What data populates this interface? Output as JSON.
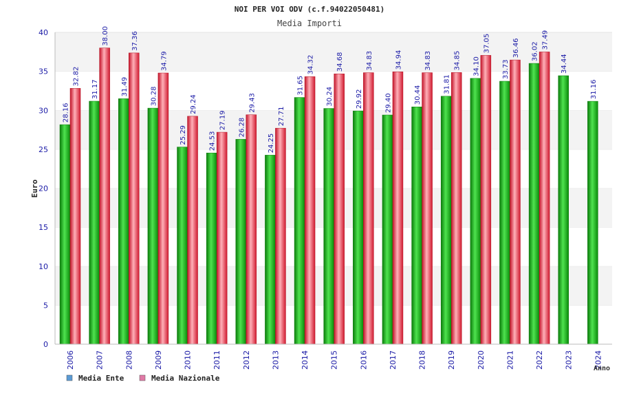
{
  "chart_data": {
    "type": "bar",
    "title": "NOI PER VOI ODV (c.f.94022050481)",
    "subtitle": "Media Importi",
    "ylabel": "Euro",
    "xlabel": "Anno",
    "ylim": [
      0,
      40
    ],
    "yticks": [
      0,
      5,
      10,
      15,
      20,
      25,
      30,
      35,
      40
    ],
    "grid": "horizontal bands",
    "legend_position": "bottom-left",
    "categories": [
      "2006",
      "2007",
      "2008",
      "2009",
      "2010",
      "2011",
      "2012",
      "2013",
      "2014",
      "2015",
      "2016",
      "2017",
      "2018",
      "2019",
      "2020",
      "2021",
      "2022",
      "2023",
      "2024"
    ],
    "series": [
      {
        "name": "Media Ente",
        "bar_color": "#1db11d",
        "legend_color": "#5b9bd5",
        "values": [
          28.16,
          31.17,
          31.49,
          30.28,
          25.29,
          24.53,
          26.28,
          24.25,
          31.65,
          30.24,
          29.92,
          29.4,
          30.44,
          31.81,
          34.1,
          33.73,
          36.02,
          34.44,
          31.16
        ],
        "labels": [
          "28.16",
          "31.17",
          "31.49",
          "30.28",
          "25.29",
          "24.53",
          "26.28",
          "24.25",
          "31.65",
          "30.24",
          "29.92",
          "29.40",
          "30.44",
          "31.81",
          "34.10",
          "33.73",
          "36.02",
          "34.44",
          "31.16"
        ]
      },
      {
        "name": "Media Nazionale",
        "bar_color": "#e8283a",
        "legend_color": "#e07aa6",
        "values": [
          32.82,
          38.0,
          37.36,
          34.79,
          29.24,
          27.19,
          29.43,
          27.71,
          34.32,
          34.68,
          34.83,
          34.94,
          34.83,
          34.85,
          37.05,
          36.46,
          37.49,
          null,
          null
        ],
        "labels": [
          "32.82",
          "38.00",
          "37.36",
          "34.79",
          "29.24",
          "27.19",
          "29.43",
          "27.71",
          "34.32",
          "34.68",
          "34.83",
          "34.94",
          "34.83",
          "34.85",
          "37.05",
          "36.46",
          "37.49",
          null,
          null
        ]
      }
    ]
  }
}
